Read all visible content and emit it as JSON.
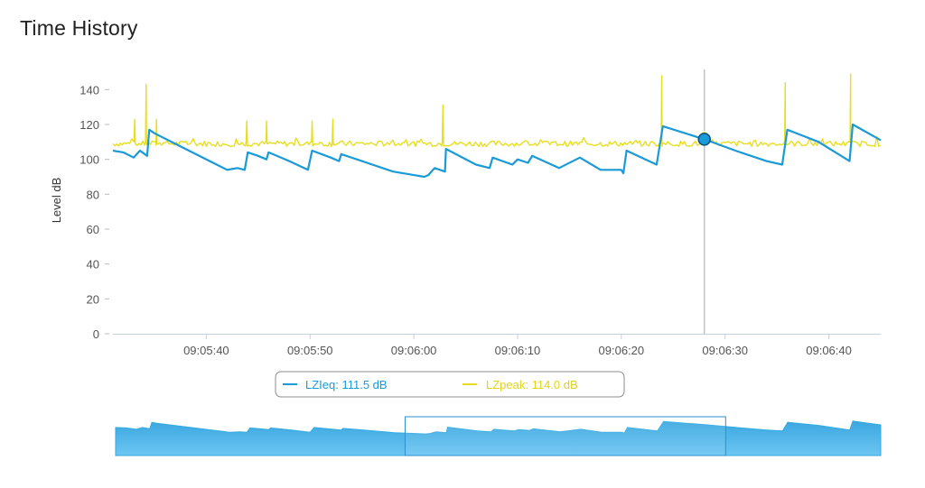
{
  "page": {
    "title": "Time History"
  },
  "chart_data": {
    "type": "line",
    "ylabel": "Level dB",
    "xlabel": "",
    "ylim": [
      0,
      150
    ],
    "yticks": [
      0,
      20,
      40,
      60,
      80,
      100,
      120,
      140
    ],
    "xlim": [
      "09:05:31",
      "09:06:45"
    ],
    "xticks": [
      "09:05:40",
      "09:05:50",
      "09:06:00",
      "09:06:10",
      "09:06:20",
      "09:06:30",
      "09:06:40"
    ],
    "grid": "none",
    "cursor": {
      "x": "09:06:28",
      "LZIeq": 111.5,
      "LZpeak": 114.0
    },
    "legend": {
      "placement": "bottom",
      "items": [
        {
          "series": "LZIeq",
          "text": "LZIeq: 111.5 dB"
        },
        {
          "series": "LZpeak",
          "text": "LZpeak: 114.0 dB"
        }
      ]
    },
    "series": [
      {
        "name": "LZIeq",
        "color": "#1a9ad6",
        "points": [
          [
            "09:05:31",
            105
          ],
          [
            "09:05:32",
            104
          ],
          [
            "09:05:33",
            101
          ],
          [
            "09:05:33.6",
            105
          ],
          [
            "09:05:34.3",
            102
          ],
          [
            "09:05:34.5",
            117
          ],
          [
            "09:05:35",
            115
          ],
          [
            "09:05:38",
            106
          ],
          [
            "09:05:41",
            97
          ],
          [
            "09:05:42",
            94
          ],
          [
            "09:05:43",
            95
          ],
          [
            "09:05:43.7",
            94
          ],
          [
            "09:05:44",
            104
          ],
          [
            "09:05:45",
            102
          ],
          [
            "09:05:45.8",
            100
          ],
          [
            "09:05:46",
            104
          ],
          [
            "09:05:48",
            99
          ],
          [
            "09:05:49.8",
            94
          ],
          [
            "09:05:50.2",
            105
          ],
          [
            "09:05:52",
            101
          ],
          [
            "09:05:52.8",
            99
          ],
          [
            "09:05:53",
            103
          ],
          [
            "09:05:55",
            99
          ],
          [
            "09:05:56",
            97
          ],
          [
            "09:05:57",
            95
          ],
          [
            "09:05:58",
            93
          ],
          [
            "09:06:00",
            91
          ],
          [
            "09:06:01",
            90
          ],
          [
            "09:06:01.4",
            91
          ],
          [
            "09:06:02",
            95
          ],
          [
            "09:06:03",
            93
          ],
          [
            "09:06:03.1",
            106
          ],
          [
            "09:06:06",
            97
          ],
          [
            "09:06:07.3",
            95
          ],
          [
            "09:06:07.6",
            101
          ],
          [
            "09:06:09.5",
            97
          ],
          [
            "09:06:10",
            100
          ],
          [
            "09:06:11",
            98
          ],
          [
            "09:06:11.4",
            102
          ],
          [
            "09:06:14",
            95
          ],
          [
            "09:06:16",
            101
          ],
          [
            "09:06:18",
            94
          ],
          [
            "09:06:20",
            94
          ],
          [
            "09:06:20.2",
            92
          ],
          [
            "09:06:20.5",
            105
          ],
          [
            "09:06:23.4",
            97
          ],
          [
            "09:06:24",
            119
          ],
          [
            "09:06:28",
            111.5
          ],
          [
            "09:06:31",
            105
          ],
          [
            "09:06:32",
            103
          ],
          [
            "09:06:34",
            99
          ],
          [
            "09:06:35.5",
            97
          ],
          [
            "09:06:36",
            117
          ],
          [
            "09:06:39",
            110
          ],
          [
            "09:06:42",
            99
          ],
          [
            "09:06:42.3",
            120
          ],
          [
            "09:06:45",
            111
          ]
        ]
      },
      {
        "name": "LZpeak",
        "color": "#e8de1f",
        "baseline": 109,
        "spikes": [
          [
            "09:05:33.1",
            123
          ],
          [
            "09:05:34.2",
            143
          ],
          [
            "09:05:35.2",
            123
          ],
          [
            "09:05:43.9",
            122
          ],
          [
            "09:05:45.8",
            122
          ],
          [
            "09:05:50.2",
            122
          ],
          [
            "09:05:52.2",
            123
          ],
          [
            "09:06:02.8",
            131
          ],
          [
            "09:06:23.9",
            148
          ],
          [
            "09:06:35.8",
            144
          ],
          [
            "09:06:42.1",
            149
          ]
        ]
      }
    ],
    "navigator": {
      "series": "LZIeq",
      "color": "#36a9e1",
      "selection": [
        "09:05:59",
        "09:06:30"
      ]
    }
  }
}
